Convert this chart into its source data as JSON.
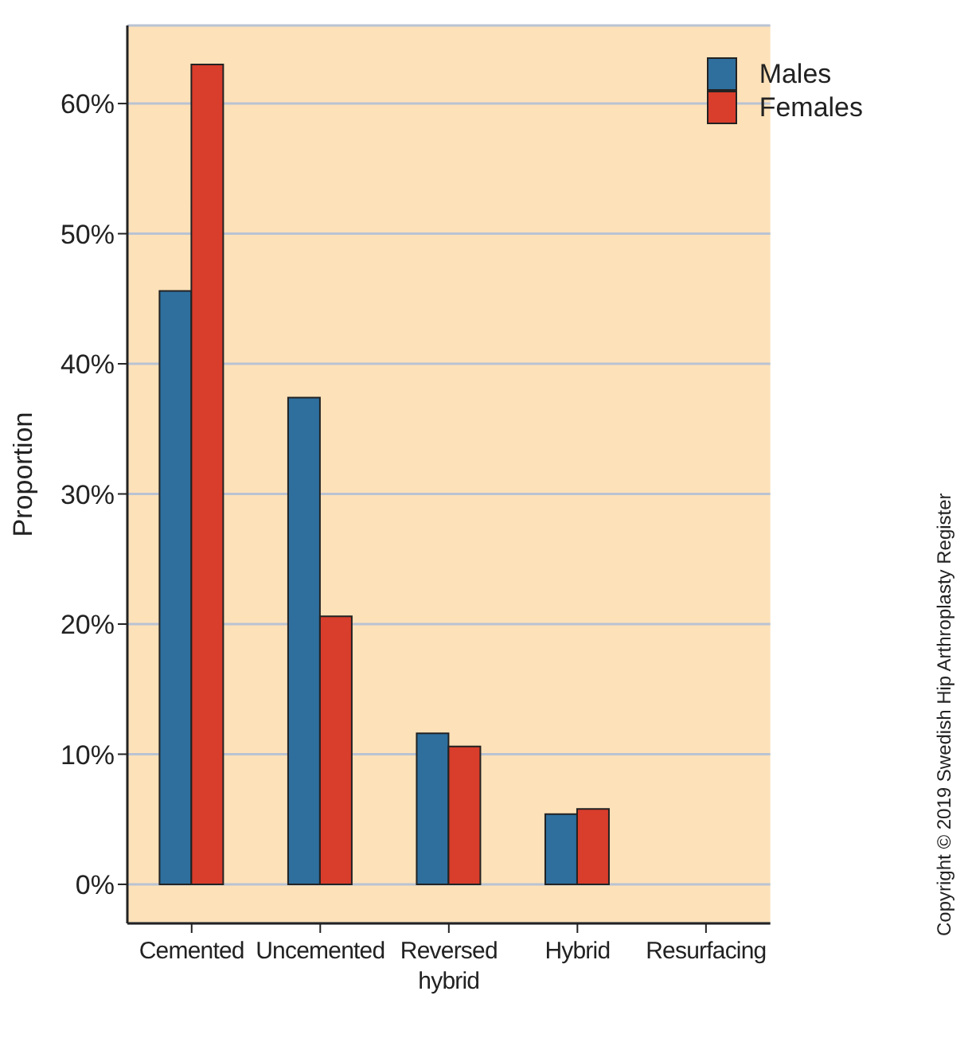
{
  "chart_data": {
    "type": "bar",
    "ylabel": "Proportion",
    "categories": [
      "Cemented",
      "Uncemented",
      "Reversed hybrid",
      "Hybrid",
      "Resurfacing"
    ],
    "series": [
      {
        "name": "Males",
        "color": "#2e6f9e",
        "values": [
          45.6,
          37.4,
          11.6,
          5.4,
          0
        ]
      },
      {
        "name": "Females",
        "color": "#d93d2c",
        "values": [
          63.0,
          20.6,
          10.6,
          5.8,
          0
        ]
      }
    ],
    "ylim": [
      -3,
      66
    ],
    "yticks": [
      {
        "value": 0,
        "label": "0%"
      },
      {
        "value": 10,
        "label": "10%"
      },
      {
        "value": 20,
        "label": "20%"
      },
      {
        "value": 30,
        "label": "30%"
      },
      {
        "value": 40,
        "label": "40%"
      },
      {
        "value": 50,
        "label": "50%"
      },
      {
        "value": 60,
        "label": "60%"
      }
    ],
    "grid": "y",
    "legend": "top right",
    "annotations": [
      "Copyright © 2019 Swedish Hip Arthroplasty Register"
    ]
  }
}
